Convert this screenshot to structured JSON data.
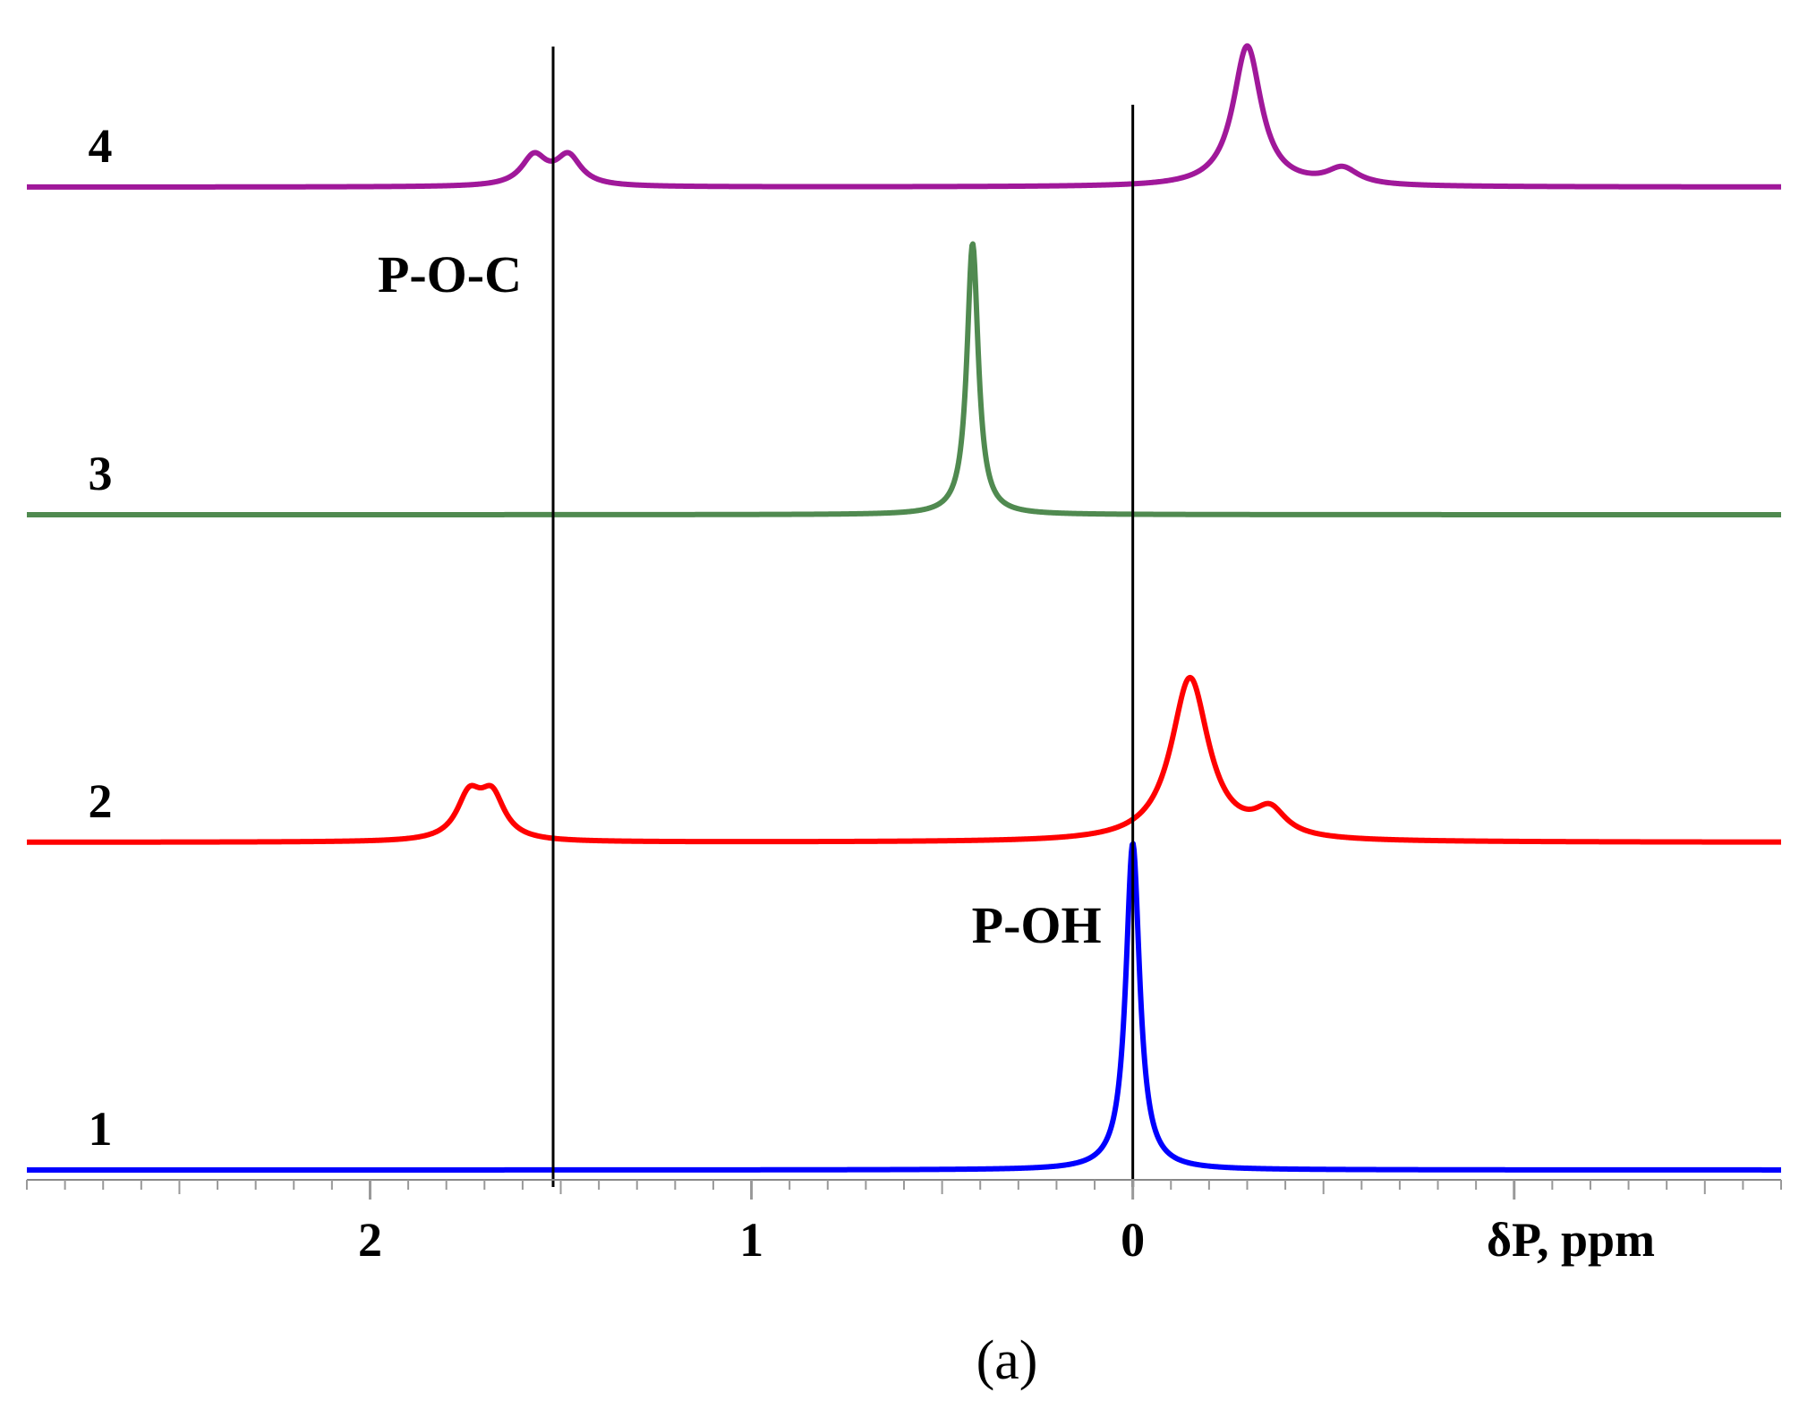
{
  "chart_data": {
    "type": "line",
    "title": "",
    "xlabel": "δP, ppm",
    "ylabel": "",
    "x_axis_reversed": true,
    "xlim": [
      2.9,
      -1.7
    ],
    "x_ticks": [
      2,
      1,
      0
    ],
    "x_tick_labels": [
      "2",
      "1",
      "0"
    ],
    "grid": false,
    "panel_label": "(a)",
    "series": [
      {
        "name": "1",
        "color": "#0000ff",
        "baseline_offset": 0,
        "peaks": [
          {
            "x": 0.0,
            "height": 1.0,
            "width": 0.022
          }
        ]
      },
      {
        "name": "2",
        "color": "#ff0000",
        "baseline_offset": 1,
        "peaks": [
          {
            "x": 1.74,
            "height": 0.13,
            "width": 0.04
          },
          {
            "x": 1.68,
            "height": 0.13,
            "width": 0.04
          },
          {
            "x": -0.15,
            "height": 0.5,
            "width": 0.06
          },
          {
            "x": -0.36,
            "height": 0.08,
            "width": 0.05
          }
        ]
      },
      {
        "name": "3",
        "color": "#508a50",
        "baseline_offset": 2,
        "peaks": [
          {
            "x": 0.42,
            "height": 0.83,
            "width": 0.018
          }
        ]
      },
      {
        "name": "4",
        "color": "#a0189a",
        "baseline_offset": 3,
        "peaks": [
          {
            "x": 1.57,
            "height": 0.09,
            "width": 0.04
          },
          {
            "x": 1.48,
            "height": 0.09,
            "width": 0.04
          },
          {
            "x": -0.3,
            "height": 0.43,
            "width": 0.045
          },
          {
            "x": -0.55,
            "height": 0.05,
            "width": 0.05
          }
        ]
      }
    ],
    "reference_lines": [
      {
        "x": 1.52,
        "label": "P-O-C"
      },
      {
        "x": 0.0,
        "label": "P-OH"
      }
    ]
  }
}
